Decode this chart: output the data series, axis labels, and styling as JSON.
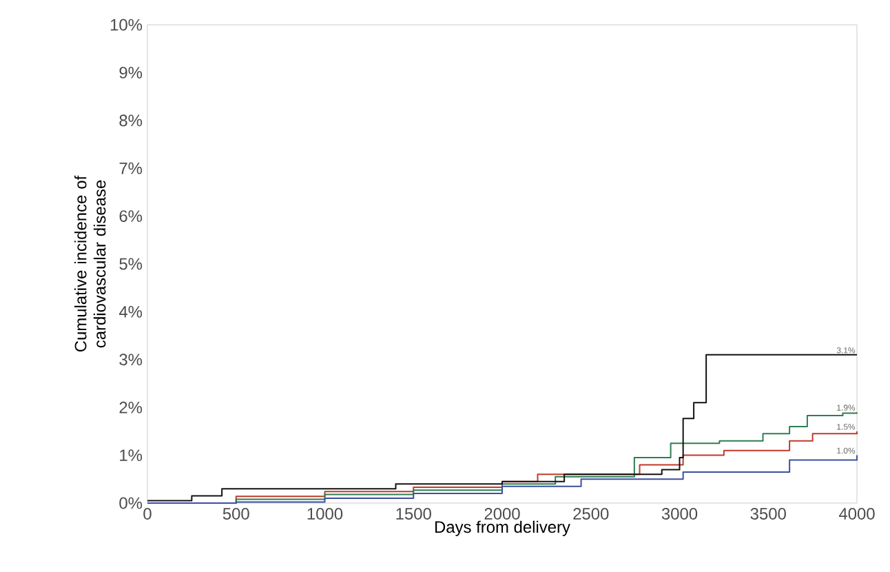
{
  "chart_data": {
    "type": "step",
    "xlabel": "Days from delivery",
    "ylabel": "Cumulative incidence of cardiovascular disease",
    "xlim": [
      0,
      4000
    ],
    "xticks": [
      0,
      500,
      1000,
      1500,
      2000,
      2500,
      3000,
      3500,
      4000
    ],
    "ylim": [
      0,
      10
    ],
    "yticks": [
      {
        "value": 0,
        "label": "0%"
      },
      {
        "value": 1,
        "label": "1%"
      },
      {
        "value": 2,
        "label": "2%"
      },
      {
        "value": 3,
        "label": "3%"
      },
      {
        "value": 4,
        "label": "4%"
      },
      {
        "value": 5,
        "label": "5%"
      },
      {
        "value": 6,
        "label": "6%"
      },
      {
        "value": 7,
        "label": "7%"
      },
      {
        "value": 8,
        "label": "8%"
      },
      {
        "value": 9,
        "label": "9%"
      },
      {
        "value": 10,
        "label": "10%"
      }
    ],
    "grid": false,
    "series": [
      {
        "color": "#c0392b",
        "x": [
          0,
          500,
          1000,
          1500,
          2000,
          2200,
          2775,
          3020,
          3250,
          3620,
          3750,
          4000
        ],
        "values": [
          0,
          0.14,
          0.24,
          0.33,
          0.45,
          0.6,
          0.8,
          1.0,
          1.1,
          1.3,
          1.45,
          1.5
        ],
        "value_labels": [
          null,
          null,
          null,
          null,
          null,
          null,
          null,
          null,
          null,
          null,
          null,
          "1.5%"
        ]
      },
      {
        "color": "#2e7d4f",
        "x": [
          0,
          500,
          1000,
          1500,
          2000,
          2300,
          2745,
          2950,
          3225,
          3470,
          3620,
          3720,
          3920,
          4000
        ],
        "values": [
          0,
          0.08,
          0.18,
          0.27,
          0.4,
          0.55,
          0.95,
          1.25,
          1.3,
          1.45,
          1.6,
          1.83,
          1.88,
          1.9
        ],
        "value_labels": [
          null,
          null,
          null,
          null,
          null,
          null,
          null,
          null,
          null,
          null,
          null,
          null,
          null,
          "1.9%"
        ]
      },
      {
        "color": "#111111",
        "x": [
          0,
          250,
          420,
          1400,
          2000,
          2350,
          2900,
          3000,
          3020,
          3080,
          3150,
          4000
        ],
        "values": [
          0.05,
          0.15,
          0.3,
          0.4,
          0.45,
          0.6,
          0.7,
          0.95,
          1.77,
          2.1,
          3.1,
          3.1
        ],
        "value_labels": [
          null,
          null,
          null,
          null,
          null,
          null,
          null,
          null,
          null,
          null,
          null,
          "3.1%"
        ]
      },
      {
        "color": "#3b4fa0",
        "x": [
          0,
          500,
          1000,
          1500,
          2000,
          2445,
          3020,
          3620,
          4000
        ],
        "values": [
          0,
          0.02,
          0.1,
          0.2,
          0.35,
          0.5,
          0.65,
          0.9,
          1.0
        ],
        "value_labels": [
          null,
          null,
          null,
          null,
          null,
          null,
          null,
          null,
          "1.0%"
        ]
      }
    ]
  }
}
